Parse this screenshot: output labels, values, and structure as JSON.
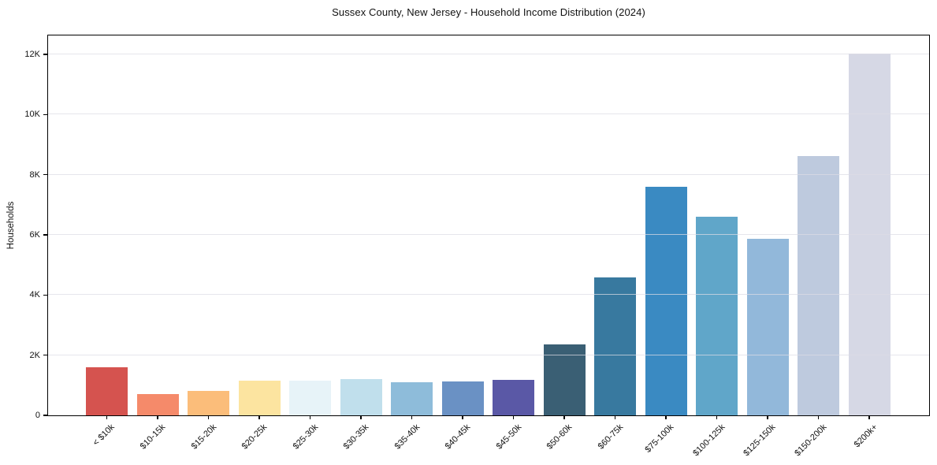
{
  "chart_data": {
    "type": "bar",
    "title": "Sussex County, New Jersey - Household Income Distribution (2024)",
    "xlabel": "",
    "ylabel": "Households",
    "categories": [
      "< $10k",
      "$10-15k",
      "$15-20k",
      "$20-25k",
      "$25-30k",
      "$30-35k",
      "$35-40k",
      "$40-45k",
      "$45-50k",
      "$50-60k",
      "$60-75k",
      "$75-100k",
      "$100-125k",
      "$125-150k",
      "$150-200k",
      "$200k+"
    ],
    "values": [
      1600,
      700,
      810,
      1150,
      1150,
      1200,
      1100,
      1130,
      1180,
      2360,
      4590,
      7600,
      6610,
      5880,
      8620,
      12020
    ],
    "bar_colors": [
      "#d5534f",
      "#f58a6a",
      "#fbbd7a",
      "#fce4a0",
      "#e7f3f8",
      "#c0dfec",
      "#8ebcda",
      "#6a91c4",
      "#5a58a6",
      "#3a5f74",
      "#38799f",
      "#3a8ac2",
      "#60a6c9",
      "#92b8da",
      "#becade",
      "#d6d8e5"
    ],
    "ylim": [
      0,
      12630
    ],
    "ytick_values": [
      0,
      2000,
      4000,
      6000,
      8000,
      10000,
      12000
    ],
    "ytick_labels": [
      "0",
      "2K",
      "4K",
      "6K",
      "8K",
      "10K",
      "12K"
    ],
    "grid": "horizontal-only, light gray, drawn over bars",
    "legend": "none",
    "background": "#ffffff",
    "axis_color": "#000000",
    "gridline_color": "#ececec"
  }
}
